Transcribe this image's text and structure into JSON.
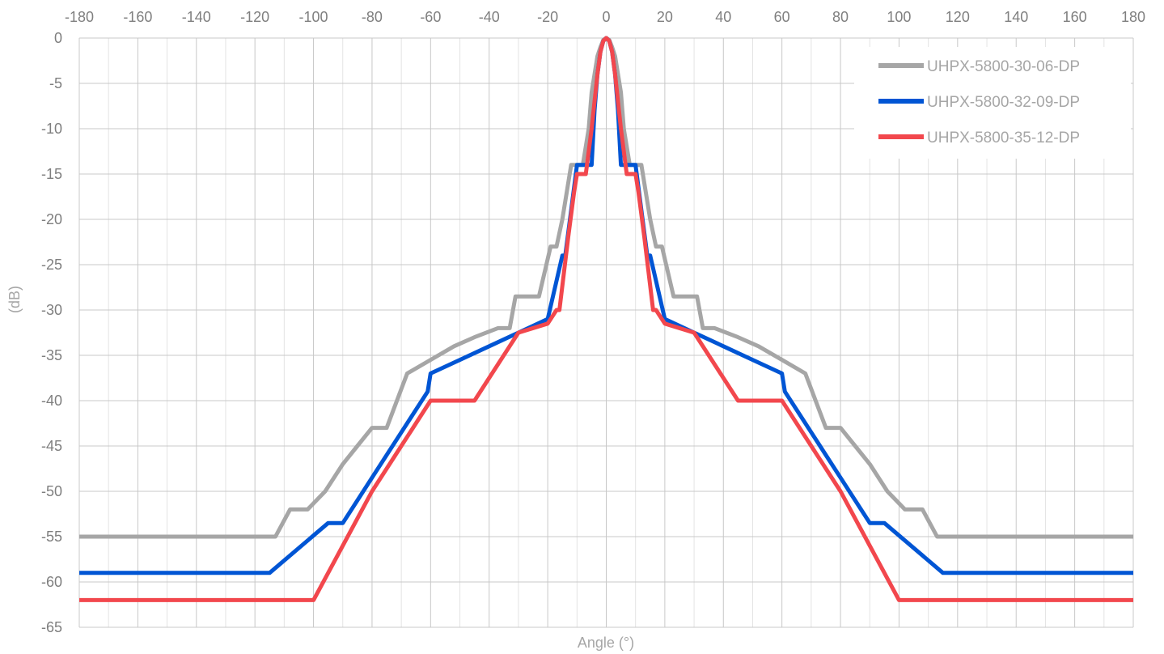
{
  "chart_data": {
    "type": "line",
    "title": "",
    "xlabel": "Angle (°)",
    "ylabel": "(dB)",
    "xlim": [
      -180,
      180
    ],
    "ylim": [
      -65,
      0
    ],
    "x_major_step": 20,
    "x_minor_step": 10,
    "y_major_step": 5,
    "grid": true,
    "legend_position": "top-right",
    "x_ticks": [
      "-180",
      "-160",
      "-140",
      "-120",
      "-100",
      "-80",
      "-60",
      "-40",
      "-20",
      "0",
      "20",
      "40",
      "60",
      "80",
      "100",
      "120",
      "140",
      "160",
      "180"
    ],
    "y_ticks": [
      "0",
      "-5",
      "-10",
      "-15",
      "-20",
      "-25",
      "-30",
      "-35",
      "-40",
      "-45",
      "-50",
      "-55",
      "-60",
      "-65"
    ],
    "series": [
      {
        "name": "UHPX-5800-30-06-DP",
        "color": "#a6a6a6",
        "x": [
          -180,
          -113,
          -108,
          -102,
          -96,
          -90,
          -85,
          -80,
          -75,
          -68,
          -60,
          -52,
          -45,
          -37,
          -33,
          -31,
          -23,
          -19,
          -17,
          -15,
          -12,
          -10,
          -8,
          -6,
          -5,
          -4,
          -3,
          -2,
          -1,
          0,
          1,
          2,
          3,
          4,
          5,
          6,
          8,
          10,
          12,
          15,
          17,
          19,
          23,
          31,
          33,
          37,
          45,
          52,
          60,
          68,
          75,
          80,
          85,
          90,
          96,
          102,
          108,
          113,
          180
        ],
        "y": [
          -55,
          -55,
          -52,
          -52,
          -50,
          -47,
          -45,
          -43,
          -43,
          -37,
          -35.5,
          -34,
          -33,
          -32,
          -32,
          -28.5,
          -28.5,
          -23,
          -23,
          -20,
          -14,
          -14,
          -14,
          -10,
          -6,
          -4,
          -2,
          -1,
          -0.2,
          0,
          -0.2,
          -1,
          -2,
          -4,
          -6,
          -10,
          -14,
          -14,
          -14,
          -20,
          -23,
          -23,
          -28.5,
          -28.5,
          -32,
          -32,
          -33,
          -34,
          -35.5,
          -37,
          -43,
          -43,
          -45,
          -47,
          -50,
          -52,
          -52,
          -55,
          -55
        ]
      },
      {
        "name": "UHPX-5800-32-09-DP",
        "color": "#0055d4",
        "x": [
          -180,
          -115,
          -95,
          -90,
          -80,
          -70,
          -61,
          -60,
          -50,
          -40,
          -30,
          -20,
          -15,
          -14,
          -12,
          -10,
          -8,
          -5,
          -4,
          -3,
          -2,
          -1,
          0,
          1,
          2,
          3,
          4,
          5,
          8,
          10,
          12,
          14,
          15,
          20,
          30,
          40,
          50,
          60,
          61,
          70,
          80,
          90,
          95,
          115,
          180
        ],
        "y": [
          -59,
          -59,
          -53.5,
          -53.5,
          -48.5,
          -43.5,
          -39,
          -37,
          -35.5,
          -34,
          -32.5,
          -31,
          -24,
          -24,
          -19,
          -14,
          -14,
          -14,
          -8,
          -4,
          -1.5,
          -0.3,
          0,
          -0.3,
          -1.5,
          -4,
          -8,
          -14,
          -14,
          -14,
          -19,
          -24,
          -24,
          -31,
          -32.5,
          -34,
          -35.5,
          -37,
          -39,
          -43.5,
          -48.5,
          -53.5,
          -53.5,
          -59,
          -59
        ]
      },
      {
        "name": "UHPX-5800-35-12-DP",
        "color": "#f2474d",
        "x": [
          -180,
          -100,
          -80,
          -70,
          -60,
          -45,
          -40,
          -30,
          -20,
          -17,
          -16,
          -13,
          -11,
          -10,
          -7,
          -5,
          -3,
          -2,
          -1,
          0,
          1,
          2,
          3,
          5,
          7,
          10,
          11,
          13,
          16,
          17,
          20,
          30,
          40,
          45,
          60,
          70,
          80,
          100,
          180
        ],
        "y": [
          -62,
          -62,
          -50,
          -45,
          -40,
          -40,
          -37.5,
          -32.5,
          -31.5,
          -30,
          -30,
          -22,
          -17,
          -15,
          -15,
          -10,
          -4,
          -1.5,
          -0.3,
          0,
          -0.3,
          -1.5,
          -4,
          -10,
          -15,
          -15,
          -17,
          -22,
          -30,
          -30,
          -31.5,
          -32.5,
          -37.5,
          -40,
          -40,
          -45,
          -50,
          -62,
          -62
        ]
      }
    ]
  }
}
